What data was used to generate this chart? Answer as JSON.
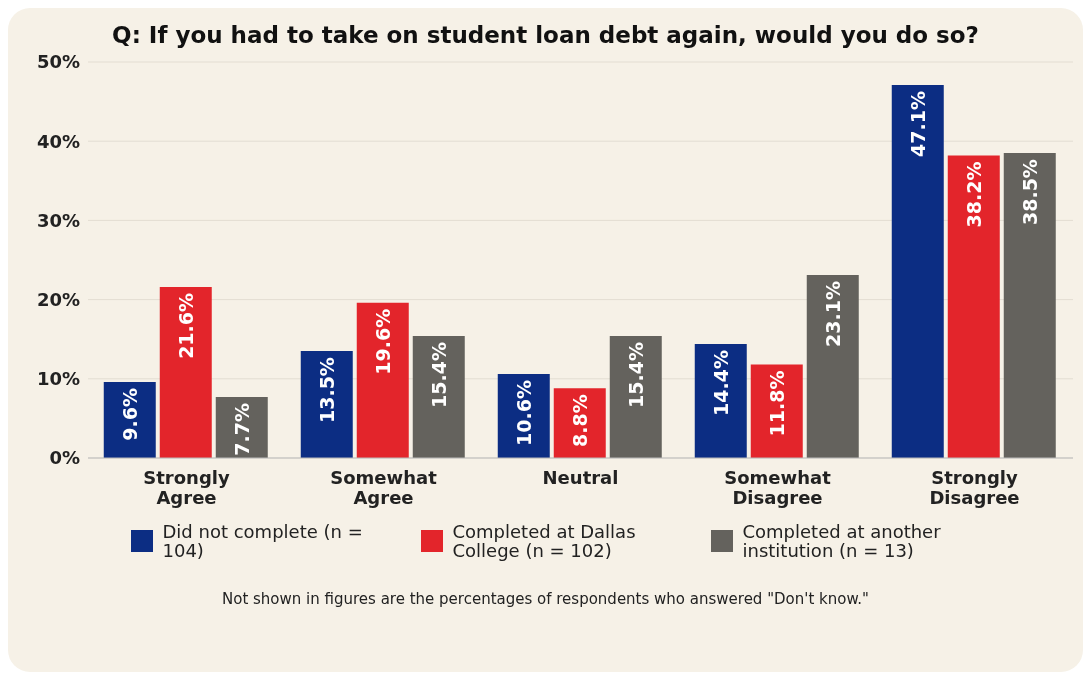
{
  "chart_data": {
    "type": "bar",
    "title": "Q: If you had to take on student loan debt again, would you do so?",
    "categories": [
      "Strongly Agree",
      "Somewhat Agree",
      "Neutral",
      "Somewhat Disagree",
      "Strongly Disagree"
    ],
    "series": [
      {
        "name": "Did not complete (n = 104)",
        "color": "#0c2d83",
        "values": [
          9.6,
          13.5,
          10.6,
          14.4,
          47.1
        ],
        "value_labels": [
          "9.6%",
          "13.5%",
          "10.6%",
          "14.4%",
          "47.1%"
        ]
      },
      {
        "name": "Completed at Dallas College (n = 102)",
        "color": "#e3252b",
        "values": [
          21.6,
          19.6,
          8.8,
          11.8,
          38.2
        ],
        "value_labels": [
          "21.6%",
          "19.6%",
          "8.8%",
          "11.8%",
          "38.2%"
        ]
      },
      {
        "name": "Completed at another institution (n = 13)",
        "color": "#64625d",
        "values": [
          7.7,
          15.4,
          15.4,
          23.1,
          38.5
        ],
        "value_labels": [
          "7.7%",
          "15.4%",
          "15.4%",
          "23.1%",
          "38.5%"
        ]
      }
    ],
    "ylim": [
      0,
      50
    ],
    "yticks": [
      {
        "value": 0,
        "label": "0%"
      },
      {
        "value": 10,
        "label": "10%"
      },
      {
        "value": 20,
        "label": "20%"
      },
      {
        "value": 30,
        "label": "30%"
      },
      {
        "value": 40,
        "label": "40%"
      },
      {
        "value": 50,
        "label": "50%"
      }
    ],
    "grid": "y",
    "legend": "bottom",
    "annotations": [
      "Not shown in figures are the percentages of respondents who answered \"Don't know.\""
    ]
  }
}
